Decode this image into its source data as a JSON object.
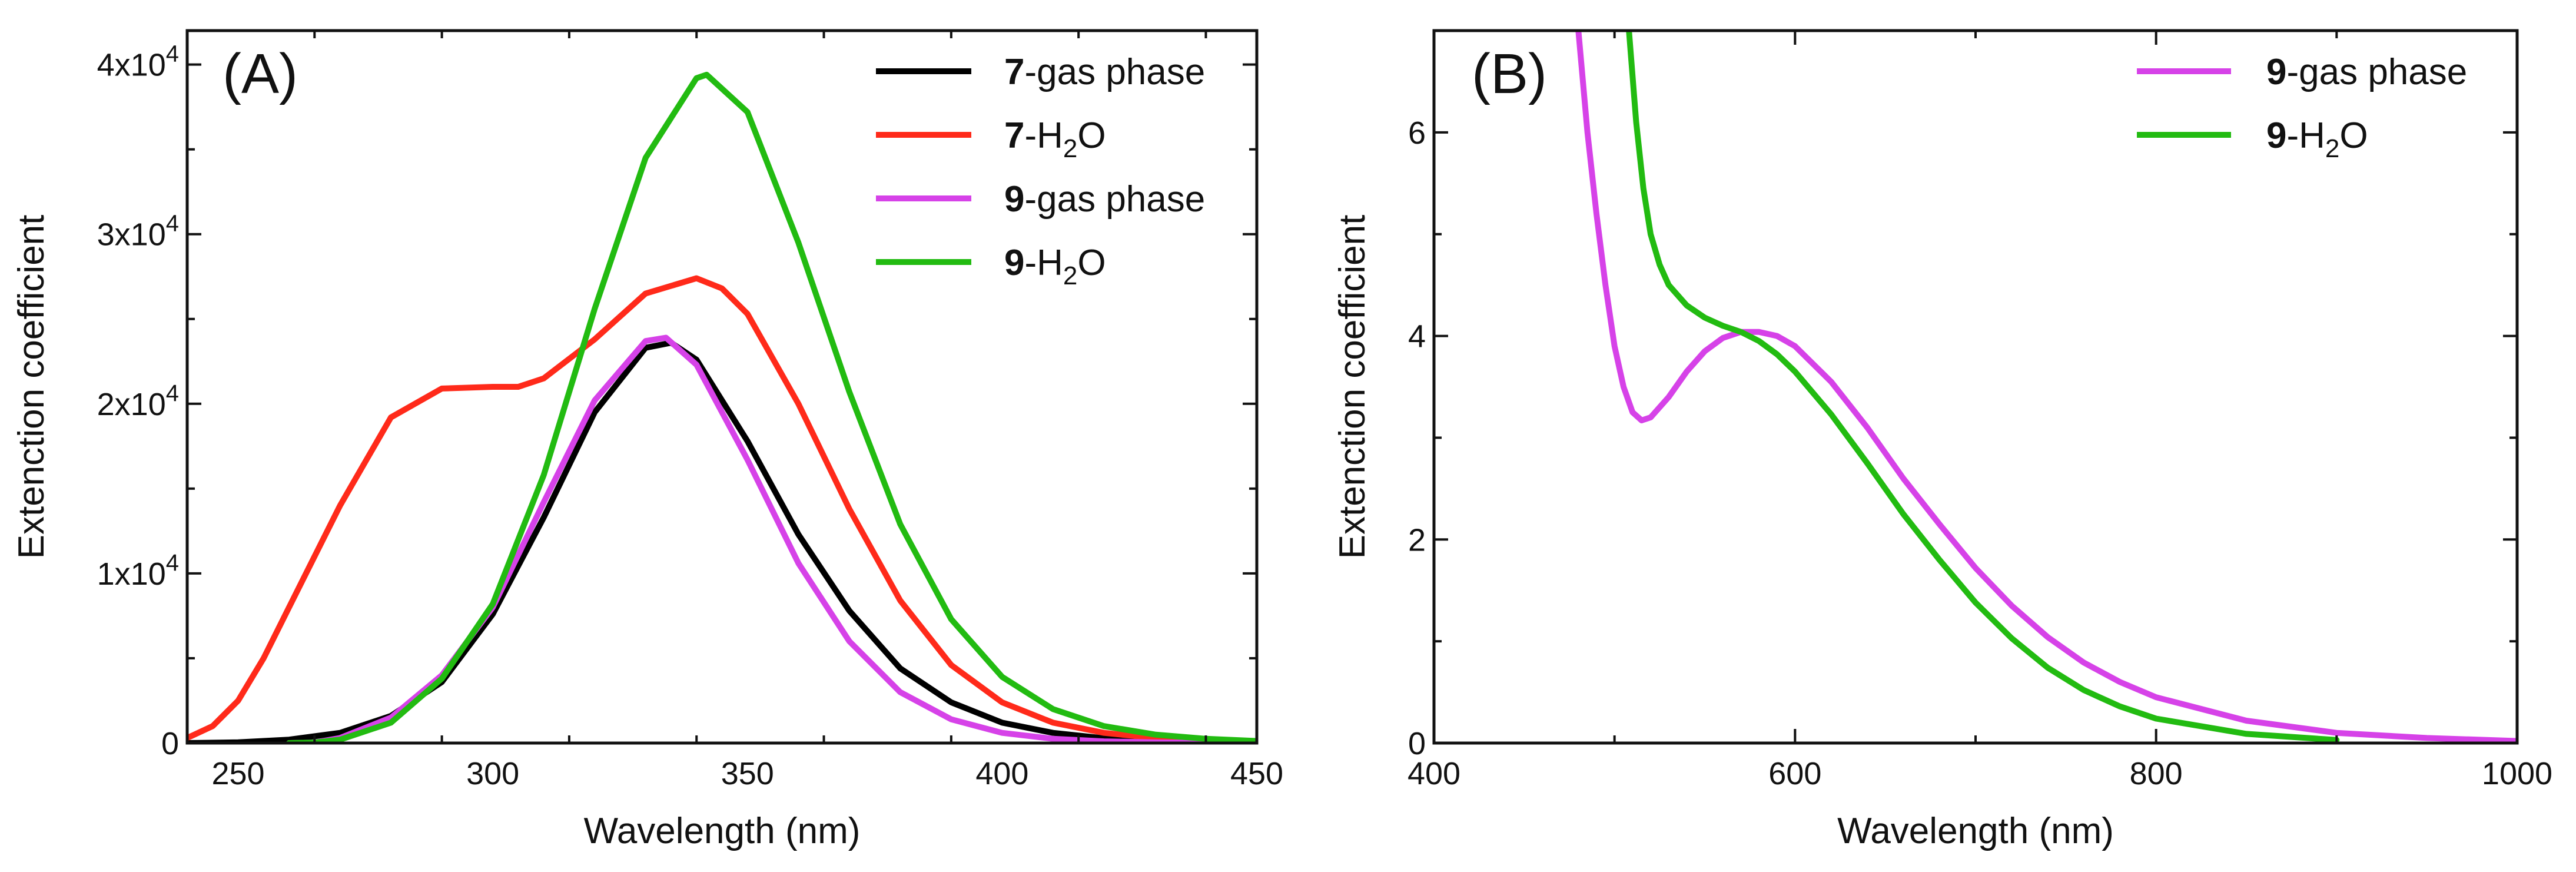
{
  "chart_data": [
    {
      "type": "line",
      "panel_label": "(A)",
      "xlabel": "Wavelength (nm)",
      "ylabel": "Extenction coefficient",
      "xlim": [
        240,
        450
      ],
      "ylim": [
        0,
        42000
      ],
      "xticks": [
        250,
        300,
        350,
        400,
        450
      ],
      "yticks": [
        0,
        10000,
        20000,
        30000,
        40000
      ],
      "ytick_labels": [
        {
          "base": "0",
          "exp": ""
        },
        {
          "base": "1x10",
          "exp": "4"
        },
        {
          "base": "2x10",
          "exp": "4"
        },
        {
          "base": "3x10",
          "exp": "4"
        },
        {
          "base": "4x10",
          "exp": "4"
        }
      ],
      "legend_position": "top-right",
      "series": [
        {
          "name": "7-gas phase",
          "bold": "7",
          "rest": "-gas phase",
          "color": "#000000",
          "x": [
            240,
            250,
            260,
            270,
            280,
            290,
            300,
            310,
            320,
            330,
            335,
            340,
            350,
            360,
            370,
            380,
            390,
            400,
            410,
            420,
            430,
            440,
            450
          ],
          "y": [
            0,
            40,
            200,
            600,
            1600,
            3600,
            7600,
            13300,
            19500,
            23300,
            23600,
            22600,
            17800,
            12300,
            7800,
            4400,
            2400,
            1200,
            600,
            280,
            140,
            60,
            30
          ]
        },
        {
          "name": "7-H2O",
          "bold": "7",
          "rest": "-H",
          "sub": "2",
          "tail": "O",
          "color": "#ff2a1a",
          "x": [
            240,
            245,
            250,
            255,
            260,
            270,
            280,
            290,
            300,
            305,
            310,
            320,
            330,
            340,
            345,
            350,
            360,
            370,
            380,
            390,
            400,
            410,
            420,
            430,
            440,
            450
          ],
          "y": [
            300,
            1000,
            2500,
            5000,
            8000,
            14000,
            19200,
            20900,
            21000,
            21000,
            21500,
            23800,
            26500,
            27400,
            26800,
            25300,
            20000,
            13800,
            8400,
            4600,
            2400,
            1200,
            600,
            300,
            150,
            80
          ]
        },
        {
          "name": "9-gas phase",
          "bold": "9",
          "rest": "-gas phase",
          "color": "#d642e8",
          "x": [
            260,
            265,
            270,
            280,
            290,
            300,
            310,
            320,
            330,
            334,
            340,
            350,
            360,
            370,
            380,
            390,
            400,
            410,
            420,
            430,
            440,
            450
          ],
          "y": [
            0,
            30,
            300,
            1500,
            4000,
            8000,
            14200,
            20200,
            23700,
            23900,
            22300,
            16700,
            10600,
            6000,
            3000,
            1400,
            600,
            250,
            100,
            40,
            15,
            5
          ]
        },
        {
          "name": "9-H2O",
          "bold": "9",
          "rest": "-H",
          "sub": "2",
          "tail": "O",
          "color": "#22bb11",
          "x": [
            260,
            265,
            270,
            280,
            290,
            300,
            310,
            320,
            330,
            340,
            342,
            350,
            360,
            370,
            380,
            390,
            400,
            410,
            420,
            430,
            440,
            450
          ],
          "y": [
            0,
            30,
            200,
            1200,
            3800,
            8200,
            15800,
            25600,
            34500,
            39200,
            39400,
            37200,
            29500,
            20700,
            12900,
            7300,
            3900,
            2000,
            1000,
            500,
            250,
            120
          ]
        }
      ]
    },
    {
      "type": "line",
      "panel_label": "(B)",
      "xlabel": "Wavelength (nm)",
      "ylabel": "Extenction coefficient",
      "xlim": [
        400,
        1000
      ],
      "ylim": [
        0,
        7
      ],
      "xticks": [
        400,
        600,
        800,
        1000
      ],
      "yticks": [
        0,
        2,
        4,
        6
      ],
      "legend_position": "top-right",
      "series": [
        {
          "name": "9-gas phase",
          "bold": "9",
          "rest": "-gas phase",
          "color": "#d642e8",
          "x": [
            480,
            485,
            490,
            495,
            500,
            505,
            510,
            515,
            520,
            530,
            540,
            550,
            560,
            570,
            580,
            590,
            600,
            620,
            640,
            660,
            680,
            700,
            720,
            740,
            760,
            780,
            800,
            850,
            900,
            950,
            1000
          ],
          "y": [
            7.0,
            6.0,
            5.2,
            4.5,
            3.9,
            3.5,
            3.25,
            3.17,
            3.2,
            3.4,
            3.65,
            3.85,
            3.98,
            4.04,
            4.04,
            4.0,
            3.9,
            3.55,
            3.1,
            2.6,
            2.15,
            1.72,
            1.35,
            1.04,
            0.79,
            0.6,
            0.45,
            0.22,
            0.1,
            0.05,
            0.02
          ]
        },
        {
          "name": "9-H2O",
          "bold": "9",
          "rest": "-H",
          "sub": "2",
          "tail": "O",
          "color": "#22bb11",
          "x": [
            508,
            512,
            516,
            520,
            525,
            530,
            540,
            550,
            560,
            570,
            580,
            590,
            600,
            620,
            640,
            660,
            680,
            700,
            720,
            740,
            760,
            780,
            800,
            850,
            900
          ],
          "y": [
            7.0,
            6.1,
            5.45,
            5.0,
            4.7,
            4.5,
            4.3,
            4.18,
            4.1,
            4.04,
            3.95,
            3.82,
            3.65,
            3.23,
            2.75,
            2.25,
            1.8,
            1.38,
            1.03,
            0.74,
            0.52,
            0.36,
            0.24,
            0.09,
            0.03
          ]
        }
      ]
    }
  ]
}
